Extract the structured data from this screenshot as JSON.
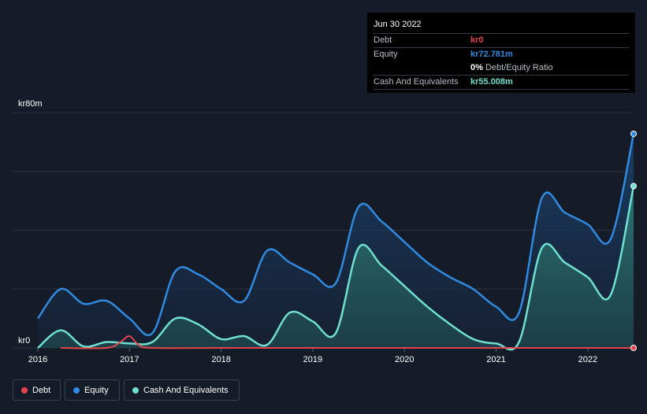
{
  "tooltip": {
    "date": "Jun 30 2022",
    "debt_label": "Debt",
    "debt_value": "kr0",
    "equity_label": "Equity",
    "equity_value": "kr72.781m",
    "ratio_value": "0%",
    "ratio_label": "Debt/Equity Ratio",
    "cash_label": "Cash And Equivalents",
    "cash_value": "kr55.008m"
  },
  "colors": {
    "debt": "#e5444f",
    "equity": "#2f8ae0",
    "cash": "#6fe0cf",
    "background": "#151b27",
    "grid": "#2c3340"
  },
  "legend": [
    {
      "name": "Debt",
      "color": "#e5444f"
    },
    {
      "name": "Equity",
      "color": "#2f8ae0"
    },
    {
      "name": "Cash And Equivalents",
      "color": "#6fe0cf"
    }
  ],
  "chart_data": {
    "type": "area",
    "y_axis_labels": {
      "top": "kr80m",
      "bottom": "kr0"
    },
    "ylim": [
      0,
      80
    ],
    "xlim": [
      2016.0,
      2022.5
    ],
    "x_tick_labels": [
      "2016",
      "2017",
      "2018",
      "2019",
      "2020",
      "2021",
      "2022"
    ],
    "series": [
      {
        "name": "Equity",
        "points": [
          [
            2016.0,
            10
          ],
          [
            2016.25,
            20
          ],
          [
            2016.5,
            15
          ],
          [
            2016.75,
            16
          ],
          [
            2017.0,
            10
          ],
          [
            2017.25,
            5
          ],
          [
            2017.5,
            26
          ],
          [
            2017.75,
            25
          ],
          [
            2018.0,
            20
          ],
          [
            2018.25,
            16
          ],
          [
            2018.5,
            33
          ],
          [
            2018.75,
            29
          ],
          [
            2019.0,
            25
          ],
          [
            2019.25,
            22
          ],
          [
            2019.5,
            48
          ],
          [
            2019.75,
            43
          ],
          [
            2020.0,
            36
          ],
          [
            2020.25,
            29
          ],
          [
            2020.5,
            24
          ],
          [
            2020.75,
            20
          ],
          [
            2021.0,
            14
          ],
          [
            2021.25,
            12
          ],
          [
            2021.5,
            51
          ],
          [
            2021.75,
            46
          ],
          [
            2022.0,
            42
          ],
          [
            2022.25,
            37
          ],
          [
            2022.5,
            72.781
          ]
        ]
      },
      {
        "name": "Cash And Equivalents",
        "points": [
          [
            2016.0,
            0
          ],
          [
            2016.25,
            6
          ],
          [
            2016.5,
            0.5
          ],
          [
            2016.75,
            2
          ],
          [
            2017.0,
            1.5
          ],
          [
            2017.25,
            2
          ],
          [
            2017.5,
            10
          ],
          [
            2017.75,
            8
          ],
          [
            2018.0,
            3
          ],
          [
            2018.25,
            4
          ],
          [
            2018.5,
            1
          ],
          [
            2018.75,
            12
          ],
          [
            2019.0,
            9
          ],
          [
            2019.25,
            5
          ],
          [
            2019.5,
            34
          ],
          [
            2019.75,
            28
          ],
          [
            2020.0,
            21
          ],
          [
            2020.25,
            14
          ],
          [
            2020.5,
            8
          ],
          [
            2020.75,
            3
          ],
          [
            2021.0,
            1.5
          ],
          [
            2021.25,
            2
          ],
          [
            2021.5,
            34
          ],
          [
            2021.75,
            29
          ],
          [
            2022.0,
            24
          ],
          [
            2022.25,
            18
          ],
          [
            2022.5,
            55.008
          ]
        ]
      },
      {
        "name": "Debt",
        "points": [
          [
            2016.25,
            0
          ],
          [
            2016.75,
            0
          ],
          [
            2016.9,
            2
          ],
          [
            2017.0,
            4
          ],
          [
            2017.1,
            1
          ],
          [
            2017.25,
            0
          ],
          [
            2018.0,
            0
          ],
          [
            2019.0,
            0
          ],
          [
            2020.0,
            0
          ],
          [
            2021.0,
            0
          ],
          [
            2022.0,
            0
          ],
          [
            2022.5,
            0
          ]
        ]
      }
    ]
  }
}
